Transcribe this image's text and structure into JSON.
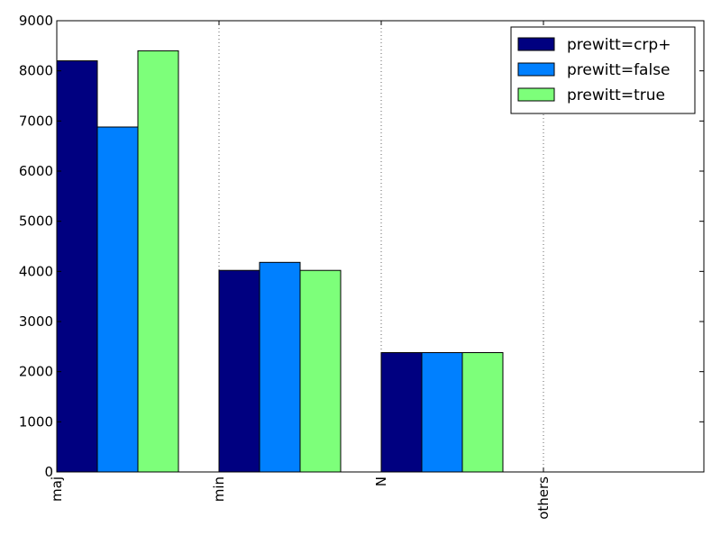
{
  "chart_data": {
    "type": "bar",
    "categories": [
      "maj",
      "min",
      "N",
      "others"
    ],
    "series": [
      {
        "name": "prewitt=crp+",
        "color": "#000080",
        "values": [
          8200,
          4020,
          2380,
          0
        ]
      },
      {
        "name": "prewitt=false",
        "color": "#0080ff",
        "values": [
          6880,
          4180,
          2380,
          0
        ]
      },
      {
        "name": "prewitt=true",
        "color": "#7dff7a",
        "values": [
          8400,
          4020,
          2380,
          0
        ]
      }
    ],
    "yticks": [
      "0",
      "1000",
      "2000",
      "3000",
      "4000",
      "5000",
      "6000",
      "7000",
      "8000",
      "9000"
    ],
    "ylim": [
      0,
      9000
    ],
    "title": "",
    "xlabel": "",
    "ylabel": "",
    "legend_position": "top-right",
    "grid": "vertical dotted at category ticks"
  }
}
